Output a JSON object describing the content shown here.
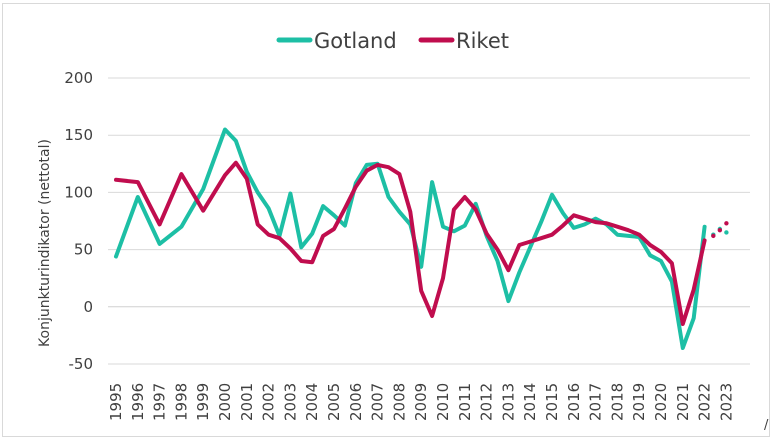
{
  "chart_data": {
    "type": "line",
    "title": "",
    "ylabel": "Konjunkturindikator (nettotal)",
    "xlabel": "",
    "ylim": [
      -50,
      200
    ],
    "yticks": [
      -50,
      0,
      50,
      100,
      150,
      200
    ],
    "grid": "horizontal",
    "legend_position": "top-center",
    "x_tick_labels": [
      "1995",
      "1996",
      "1997",
      "1998",
      "1999",
      "2000",
      "2001",
      "2002",
      "2003",
      "2004",
      "2005",
      "2006",
      "2007",
      "2008",
      "2009",
      "2010",
      "2011",
      "2012",
      "2013",
      "2014",
      "2015",
      "2016",
      "2017",
      "2018",
      "2019",
      "2020",
      "2021",
      "2022",
      "2023"
    ],
    "series": [
      {
        "name": "Gotland",
        "color": "#1dbfa5",
        "x": [
          1995,
          1996,
          1997,
          1998,
          1999,
          2000,
          2000.5,
          2001,
          2001.5,
          2002,
          2002.5,
          2003,
          2003.5,
          2004,
          2004.5,
          2005,
          2005.5,
          2006,
          2006.5,
          2007,
          2007.5,
          2008,
          2008.5,
          2009,
          2009.5,
          2010,
          2010.5,
          2011,
          2011.5,
          2012,
          2012.5,
          2013,
          2013.5,
          2014,
          2014.5,
          2015,
          2015.5,
          2016,
          2016.5,
          2017,
          2017.5,
          2018,
          2018.5,
          2019,
          2019.5,
          2020,
          2020.5,
          2021,
          2021.5,
          2022
        ],
        "y": [
          44,
          96,
          55,
          70,
          103,
          155,
          145,
          118,
          100,
          86,
          62,
          99,
          52,
          64,
          88,
          80,
          71,
          108,
          124,
          125,
          96,
          83,
          72,
          35,
          109,
          70,
          66,
          71,
          90,
          62,
          40,
          5,
          30,
          52,
          74,
          98,
          82,
          69,
          72,
          77,
          72,
          63,
          62,
          61,
          45,
          40,
          22,
          -36,
          -10,
          70
        ]
      },
      {
        "name": "Riket",
        "color": "#c00d4e",
        "x": [
          1995,
          1996,
          1997,
          1998,
          1999,
          2000,
          2000.5,
          2001,
          2001.5,
          2002,
          2002.5,
          2003,
          2003.5,
          2004,
          2004.5,
          2005,
          2005.5,
          2006,
          2006.5,
          2007,
          2007.5,
          2008,
          2008.5,
          2009,
          2009.5,
          2010,
          2010.5,
          2011,
          2011.5,
          2012,
          2012.5,
          2013,
          2013.5,
          2014,
          2014.5,
          2015,
          2015.5,
          2016,
          2016.5,
          2017,
          2017.5,
          2018,
          2018.5,
          2019,
          2019.5,
          2020,
          2020.5,
          2021,
          2021.5,
          2022
        ],
        "y": [
          111,
          109,
          72,
          116,
          84,
          115,
          126,
          112,
          72,
          63,
          60,
          51,
          40,
          39,
          62,
          68,
          86,
          105,
          119,
          124,
          122,
          116,
          83,
          14,
          -8,
          25,
          85,
          96,
          85,
          64,
          50,
          32,
          54,
          57,
          60,
          63,
          71,
          80,
          77,
          74,
          73,
          70,
          67,
          63,
          54,
          48,
          38,
          -15,
          15,
          58
        ]
      }
    ],
    "partial_points": [
      {
        "series": "Gotland",
        "x": [
          2022.4,
          2022.7,
          2023.0
        ],
        "y": [
          63,
          68,
          65
        ]
      },
      {
        "series": "Riket",
        "x": [
          2022.4,
          2022.7,
          2023.0
        ],
        "y": [
          62,
          67,
          73
        ]
      }
    ],
    "corner_mark": "/"
  }
}
